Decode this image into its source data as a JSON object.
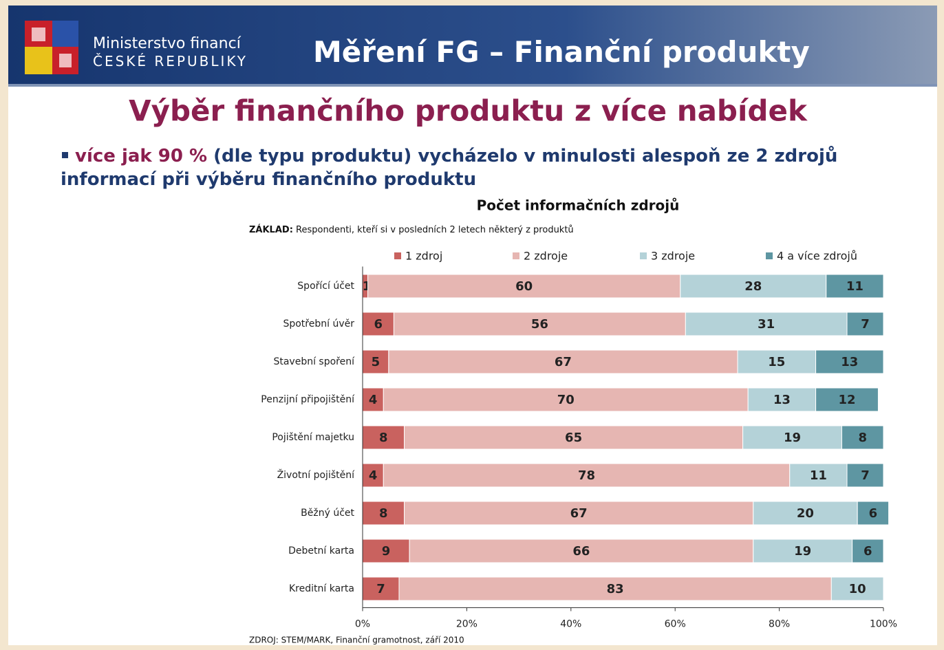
{
  "header": {
    "ministry_line1": "Ministerstvo financí",
    "ministry_line2": "ČESKÉ REPUBLIKY",
    "title": "Měření FG – Finanční produkty"
  },
  "slide_title": "Výběr finančního produktu z více nabídek",
  "bullet": {
    "highlight": "více jak 90 %",
    "text": "(dle typu produktu) vycházelo v minulosti alespoň ze 2 zdrojů informací při výběru finančního produktu"
  },
  "chart_data": {
    "type": "stacked-barh",
    "title": "Počet informačních zdrojů",
    "base_label": "ZÁKLAD:",
    "base_text": "Respondenti, kteří si v posledních 2 letech některý z produktů",
    "source": "ZDROJ: STEM/MARK, Finanční gramotnost, září 2010",
    "categories": [
      "Spořící účet",
      "Spotřební úvěr",
      "Stavební spoření",
      "Penzijní připojištění",
      "Pojištění majetku",
      "Životní pojištění",
      "Běžný účet",
      "Debetní karta",
      "Kreditní karta"
    ],
    "series": [
      {
        "name": "1 zdroj",
        "color": "#c9625f",
        "values": [
          1,
          6,
          5,
          4,
          8,
          4,
          8,
          9,
          7
        ]
      },
      {
        "name": "2 zdroje",
        "color": "#e6b6b2",
        "values": [
          60,
          56,
          67,
          70,
          65,
          78,
          67,
          66,
          83
        ]
      },
      {
        "name": "3 zdroje",
        "color": "#b4d2d8",
        "values": [
          28,
          31,
          15,
          13,
          19,
          11,
          20,
          19,
          10
        ]
      },
      {
        "name": "4 a více zdrojů",
        "color": "#5e96a2",
        "values": [
          11,
          7,
          13,
          12,
          8,
          7,
          6,
          6,
          null
        ]
      }
    ],
    "xlim": [
      0,
      100
    ],
    "xticks": [
      {
        "value": 0,
        "label": "0%"
      },
      {
        "value": 20,
        "label": "20%"
      },
      {
        "value": 40,
        "label": "40%"
      },
      {
        "value": 60,
        "label": "60%"
      },
      {
        "value": 80,
        "label": "80%"
      },
      {
        "value": 100,
        "label": "100%"
      }
    ],
    "legend": "top"
  }
}
